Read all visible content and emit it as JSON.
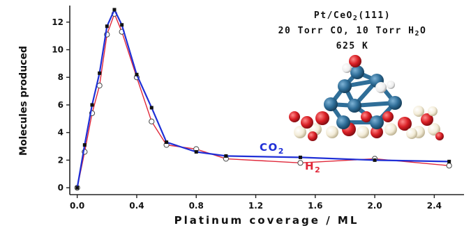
{
  "chart_data": {
    "type": "line",
    "title_lines": [
      {
        "base": "Pt/CeO",
        "sub": "2",
        "tail": "(111)"
      },
      {
        "base": "20 Torr CO, 10 Torr H",
        "sub": "2",
        "tail": "O"
      },
      {
        "base": "625 K",
        "sub": "",
        "tail": ""
      }
    ],
    "xlabel": "Platinum coverage / ML",
    "ylabel": "Molecules produced",
    "xlim": [
      -0.05,
      2.6
    ],
    "ylim": [
      -0.5,
      13.2
    ],
    "x_ticks": [
      "0.0",
      "0.4",
      "0.8",
      "1.2",
      "1.6",
      "2.0",
      "2.4"
    ],
    "x_tick_values": [
      0.0,
      0.4,
      0.8,
      1.2,
      1.6,
      2.0,
      2.4
    ],
    "y_ticks": [
      "0",
      "2",
      "4",
      "6",
      "8",
      "10",
      "12"
    ],
    "y_tick_values": [
      0,
      2,
      4,
      6,
      8,
      10,
      12
    ],
    "grid": false,
    "series": [
      {
        "name": "CO2",
        "label_base": "CO",
        "label_sub": "2",
        "color": "#1f2fd6",
        "marker": "square",
        "x": [
          0.0,
          0.05,
          0.1,
          0.15,
          0.2,
          0.25,
          0.3,
          0.4,
          0.5,
          0.6,
          0.8,
          1.0,
          1.5,
          2.0,
          2.5
        ],
        "y": [
          0.0,
          3.1,
          6.0,
          8.3,
          11.7,
          12.9,
          11.8,
          8.2,
          5.8,
          3.3,
          2.6,
          2.3,
          2.2,
          2.0,
          1.9
        ]
      },
      {
        "name": "H2",
        "label_base": "H",
        "label_sub": "2",
        "color": "#e0283a",
        "marker": "circle",
        "x": [
          0.0,
          0.05,
          0.1,
          0.15,
          0.2,
          0.25,
          0.3,
          0.4,
          0.5,
          0.6,
          0.8,
          1.0,
          1.5,
          2.0,
          2.5
        ],
        "y": [
          0.0,
          2.6,
          5.4,
          7.4,
          11.1,
          12.6,
          11.3,
          8.0,
          4.8,
          3.1,
          2.8,
          2.1,
          1.8,
          2.1,
          1.6
        ]
      }
    ]
  },
  "inset": {
    "subject": "Pt nanocluster on CeO2(111) surface ball-and-stick model",
    "colors": {
      "pt": "#2f6e98",
      "oxygen": "#d81e24",
      "ce": "#f3ecd8",
      "hydrogen": "#f4f4f4"
    }
  }
}
